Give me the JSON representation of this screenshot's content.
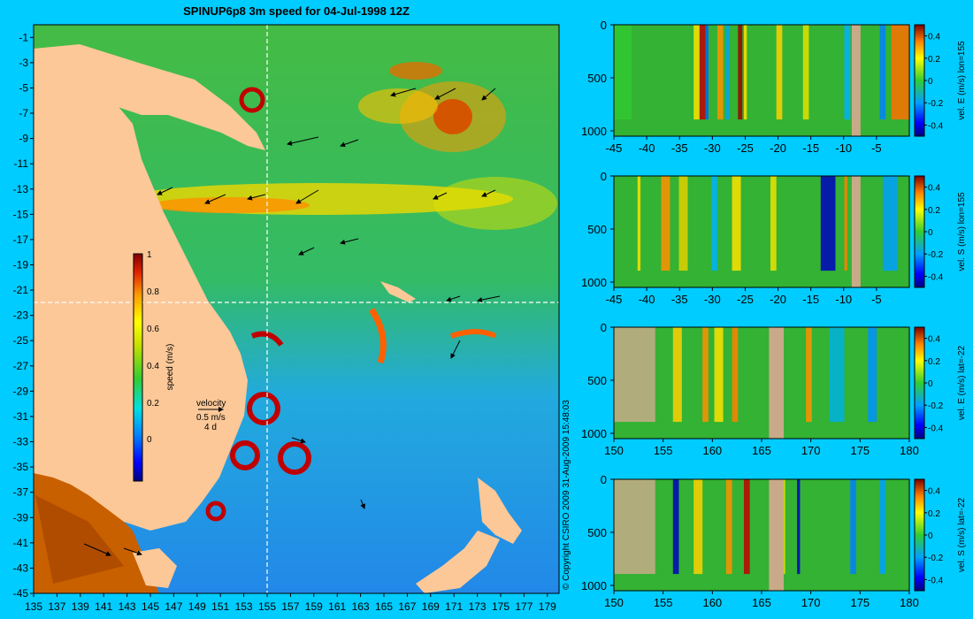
{
  "colors": {
    "background": "#00ccff",
    "land": "#fcc898",
    "ocean_mid": "#33b233",
    "land_section": "#c8aa88",
    "arrow": "#000000",
    "grid": "#ffffff"
  },
  "map": {
    "title": "SPINUP6p8 3m speed for 04-Jul-1998 12Z",
    "copyright": "© Copyright CSIRO 2009   31-Aug-2009 15:48:03",
    "colorbar": {
      "label": "speed (m/s)",
      "ticks": [
        "1",
        "0.8",
        "0.6",
        "0.4",
        "0.2",
        "0"
      ]
    },
    "legend": {
      "title": "velocity",
      "scale": "0.5 m/s",
      "unit": "4 d"
    },
    "section_lines": {
      "lon": 155,
      "lat": -22
    }
  },
  "chart_data": [
    {
      "type": "heatmap",
      "title": "SPINUP6p8 3m speed for 04-Jul-1998 12Z",
      "xlabel": "",
      "ylabel": "",
      "x_ticks": [
        "135",
        "137",
        "139",
        "141",
        "143",
        "145",
        "147",
        "149",
        "151",
        "153",
        "155",
        "157",
        "159",
        "161",
        "163",
        "165",
        "167",
        "169",
        "171",
        "173",
        "175",
        "177",
        "179"
      ],
      "y_ticks": [
        "-1",
        "-3",
        "-5",
        "-7",
        "-9",
        "-11",
        "-13",
        "-15",
        "-17",
        "-19",
        "-21",
        "-23",
        "-25",
        "-27",
        "-29",
        "-31",
        "-33",
        "-35",
        "-37",
        "-39",
        "-41",
        "-43",
        "-45"
      ],
      "xlim": [
        135,
        180
      ],
      "ylim": [
        -45,
        0
      ],
      "colorbar": {
        "label": "speed (m/s)",
        "range": [
          -0.1,
          1
        ]
      }
    },
    {
      "type": "heatmap",
      "colorbar_label": "vel. E (m/s) lon=155",
      "x_ticks": [
        "-45",
        "-40",
        "-35",
        "-30",
        "-25",
        "-20",
        "-15",
        "-10",
        "-5"
      ],
      "y_ticks": [
        "0",
        "500",
        "1000"
      ],
      "colorbar_ticks": [
        "0.4",
        "0.2",
        "0",
        "-0.2",
        "-0.4"
      ],
      "xlim": [
        -45,
        0
      ],
      "ylim": [
        1050,
        0
      ],
      "clim": [
        -0.5,
        0.5
      ]
    },
    {
      "type": "heatmap",
      "colorbar_label": "vel. S (m/s) lon=155",
      "x_ticks": [
        "-45",
        "-40",
        "-35",
        "-30",
        "-25",
        "-20",
        "-15",
        "-10",
        "-5"
      ],
      "y_ticks": [
        "0",
        "500",
        "1000"
      ],
      "colorbar_ticks": [
        "0.4",
        "0.2",
        "0",
        "-0.2",
        "-0.4"
      ],
      "xlim": [
        -45,
        0
      ],
      "ylim": [
        1050,
        0
      ],
      "clim": [
        -0.5,
        0.5
      ]
    },
    {
      "type": "heatmap",
      "colorbar_label": "vel. E (m/s) lat=-22",
      "x_ticks": [
        "150",
        "155",
        "160",
        "165",
        "170",
        "175",
        "180"
      ],
      "y_ticks": [
        "0",
        "500",
        "1000"
      ],
      "colorbar_ticks": [
        "0.4",
        "0.2",
        "0",
        "-0.2",
        "-0.4"
      ],
      "xlim": [
        150,
        180
      ],
      "ylim": [
        1050,
        0
      ],
      "clim": [
        -0.5,
        0.5
      ]
    },
    {
      "type": "heatmap",
      "colorbar_label": "vel. S (m/s) lat=-22",
      "x_ticks": [
        "150",
        "155",
        "160",
        "165",
        "170",
        "175",
        "180"
      ],
      "y_ticks": [
        "0",
        "500",
        "1000"
      ],
      "colorbar_ticks": [
        "0.4",
        "0.2",
        "0",
        "-0.2",
        "-0.4"
      ],
      "xlim": [
        150,
        180
      ],
      "ylim": [
        1050,
        0
      ],
      "clim": [
        -0.5,
        0.5
      ]
    }
  ]
}
